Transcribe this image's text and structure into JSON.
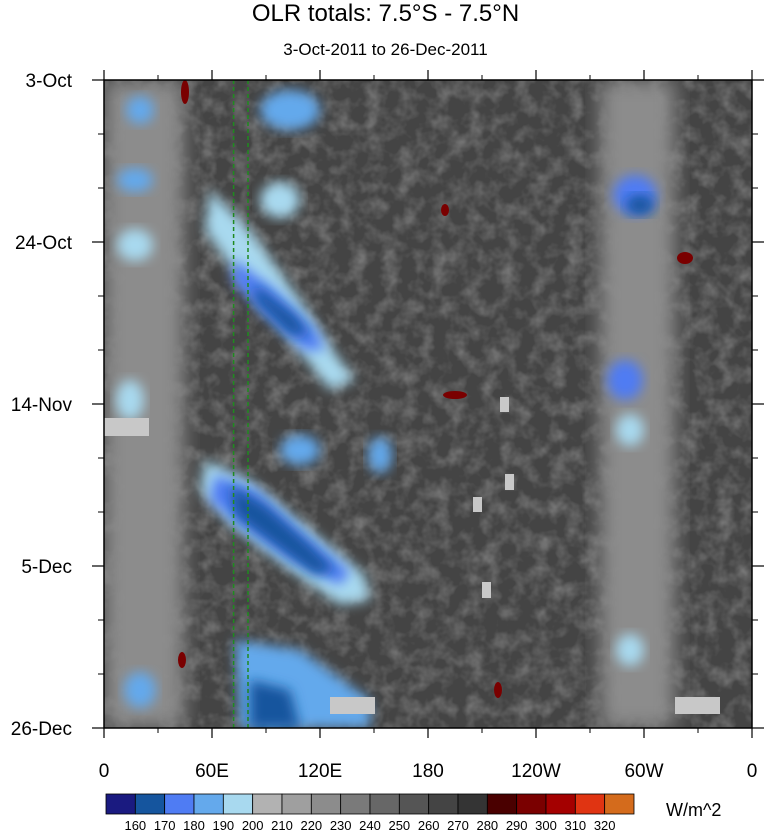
{
  "chart_data": {
    "type": "heatmap",
    "title": "OLR totals: 7.5°S - 7.5°N",
    "subtitle": "3-Oct-2011 to 26-Dec-2011",
    "x_axis": {
      "quantity": "longitude",
      "range": [
        "0",
        "0"
      ],
      "tick_labels": [
        "0",
        "60E",
        "120E",
        "180",
        "120W",
        "60W",
        "0"
      ],
      "tick_values_deg_east": [
        0,
        60,
        120,
        180,
        240,
        300,
        360
      ]
    },
    "y_axis": {
      "quantity": "date",
      "range": [
        "2011-10-03",
        "2011-12-26"
      ],
      "tick_labels": [
        "3-Oct",
        "24-Oct",
        "14-Nov",
        "5-Dec",
        "26-Dec"
      ],
      "tick_dates": [
        "2011-10-03",
        "2011-10-24",
        "2011-11-14",
        "2011-12-05",
        "2011-12-26"
      ],
      "direction": "top-to-bottom"
    },
    "colorbar": {
      "levels": [
        160,
        170,
        180,
        190,
        200,
        210,
        220,
        230,
        240,
        250,
        260,
        270,
        280,
        290,
        300,
        310,
        320
      ],
      "colors": [
        "#1a1a80",
        "#15559e",
        "#4f7cf3",
        "#64a9ec",
        "#a8d9ef",
        "#b2b2b2",
        "#9f9f9f",
        "#8c8c8c",
        "#7a7a7a",
        "#676767",
        "#555555",
        "#444444",
        "#343434",
        "#4a0000",
        "#7a0000",
        "#a40000",
        "#e03412",
        "#d46b1c"
      ],
      "units": "W/m^2",
      "placement": "bottom"
    },
    "reference_lines": {
      "style": "dashed",
      "color": "#1f8a1f",
      "longitudes_deg_east": [
        72,
        80
      ]
    },
    "features": [
      {
        "description": "low OLR band near 10E-30E",
        "lon_deg_east": 20
      },
      {
        "description": "low OLR band near 70W",
        "lon_deg_east": 290
      }
    ],
    "grid": false
  }
}
